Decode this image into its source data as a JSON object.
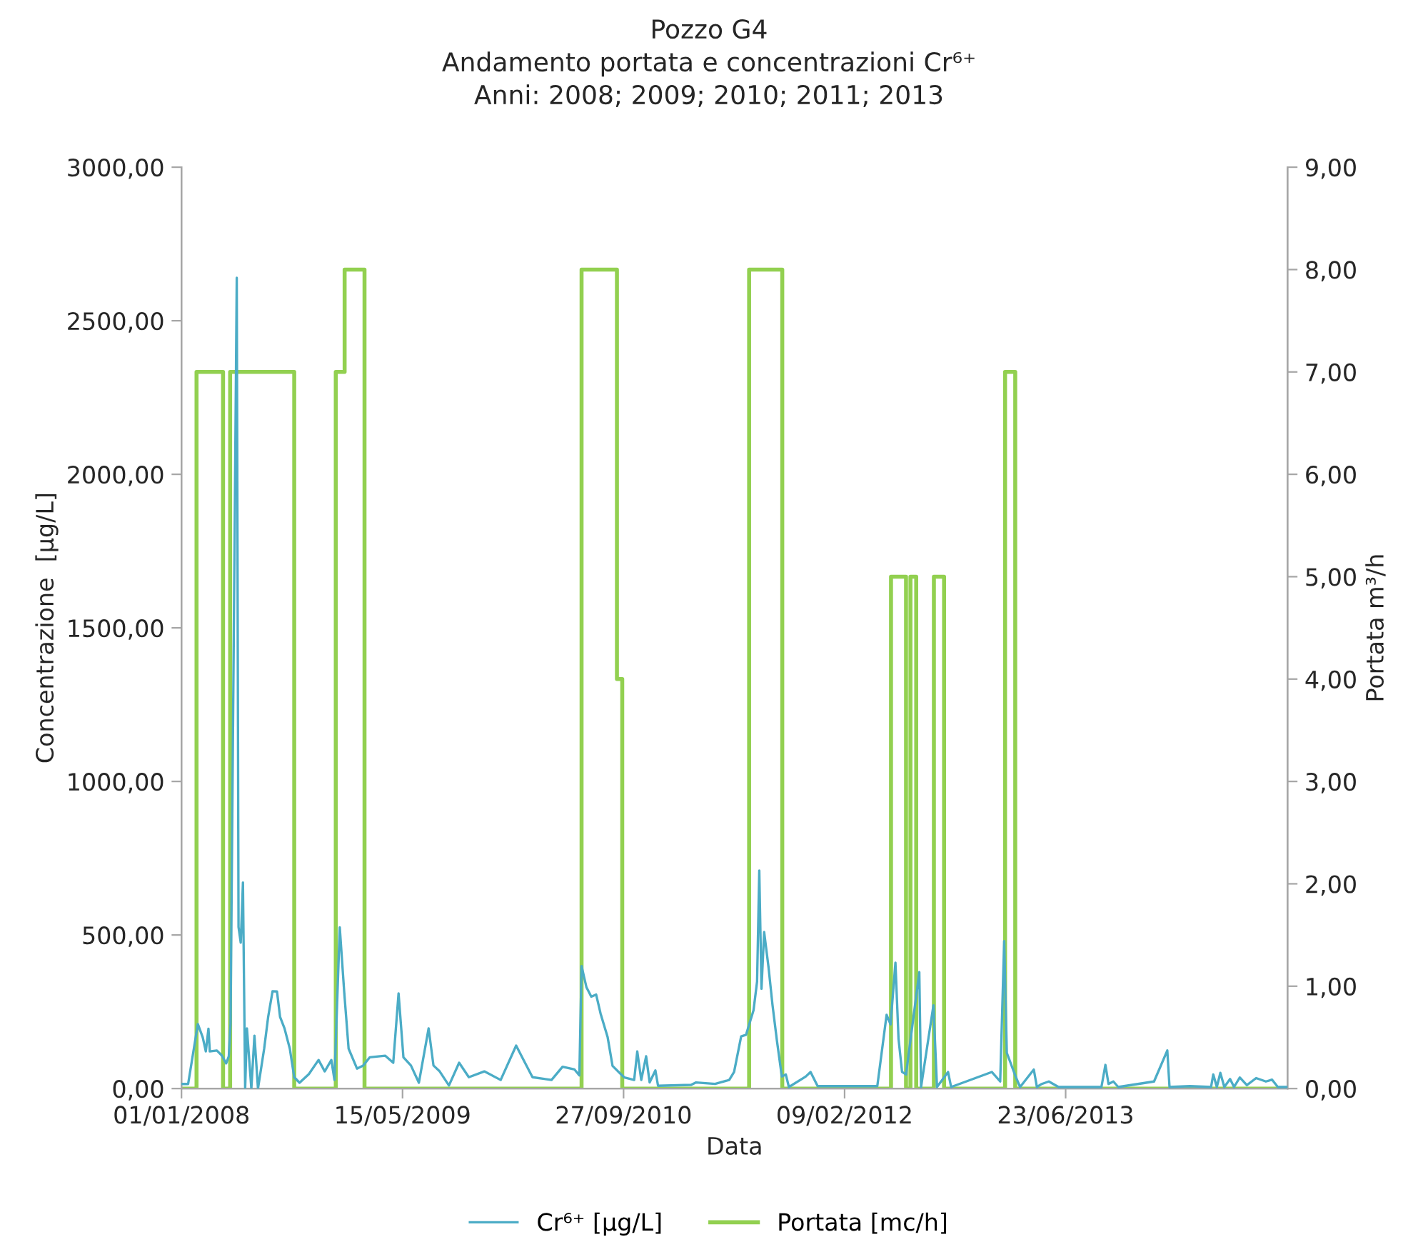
{
  "chart_data": {
    "type": "line",
    "title": "Pozzo G4",
    "subtitle": "Andamento portata e concentrazioni Cr⁶⁺\nAnni: 2008; 2009; 2010; 2011; 2013",
    "xlabel": "Data",
    "ylabel": "Concentrazione  [µg/L]",
    "y2label": "Portata m³/h",
    "xlim": [
      "2008-01-01",
      "2014-11-07"
    ],
    "xticks": [
      {
        "value": "2008-01-01",
        "label": "01/01/2008"
      },
      {
        "value": "2009-05-15",
        "label": "15/05/2009"
      },
      {
        "value": "2010-09-27",
        "label": "27/09/2010"
      },
      {
        "value": "2012-02-09",
        "label": "09/02/2012"
      },
      {
        "value": "2013-06-23",
        "label": "23/06/2013"
      }
    ],
    "ylim": [
      0,
      3000
    ],
    "yticks": [
      {
        "value": 0,
        "label": "0,00"
      },
      {
        "value": 500,
        "label": "500,00"
      },
      {
        "value": 1000,
        "label": "1000,00"
      },
      {
        "value": 1500,
        "label": "1500,00"
      },
      {
        "value": 2000,
        "label": "2000,00"
      },
      {
        "value": 2500,
        "label": "2500,00"
      },
      {
        "value": 3000,
        "label": "3000,00"
      }
    ],
    "y2lim": [
      0,
      9
    ],
    "y2ticks": [
      {
        "value": 0,
        "label": "0,00"
      },
      {
        "value": 1,
        "label": "1,00"
      },
      {
        "value": 2,
        "label": "2,00"
      },
      {
        "value": 3,
        "label": "3,00"
      },
      {
        "value": 4,
        "label": "4,00"
      },
      {
        "value": 5,
        "label": "5,00"
      },
      {
        "value": 6,
        "label": "6,00"
      },
      {
        "value": 7,
        "label": "7,00"
      },
      {
        "value": 8,
        "label": "8,00"
      },
      {
        "value": 9,
        "label": "9,00"
      }
    ],
    "grid": false,
    "legend": "bottom",
    "series": [
      {
        "name": "Cr⁶⁺ [µg/L]",
        "color": "#4bacc6",
        "x": [
          "2008-01-02",
          "2008-01-16",
          "2008-02-07",
          "2008-02-18",
          "2008-02-25",
          "2008-03-02",
          "2008-03-05",
          "2008-03-21",
          "2008-04-01",
          "2008-04-11",
          "2008-04-17",
          "2008-04-21",
          "2008-05-05",
          "2008-05-09",
          "2008-05-14",
          "2008-05-19",
          "2008-05-24",
          "2008-05-28",
          "2008-06-07",
          "2008-06-14",
          "2008-06-22",
          "2008-07-06",
          "2008-07-15",
          "2008-07-25",
          "2008-08-04",
          "2008-08-11",
          "2008-08-21",
          "2008-09-02",
          "2008-09-12",
          "2008-09-24",
          "2008-10-15",
          "2008-11-06",
          "2008-11-20",
          "2008-12-05",
          "2008-12-12",
          "2008-12-24",
          "2009-01-03",
          "2009-01-13",
          "2009-02-01",
          "2009-02-15",
          "2009-03-02",
          "2009-04-06",
          "2009-04-24",
          "2009-05-06",
          "2009-05-17",
          "2009-06-03",
          "2009-06-21",
          "2009-07-13",
          "2009-07-24",
          "2009-08-07",
          "2009-08-28",
          "2009-09-20",
          "2009-10-12",
          "2009-11-16",
          "2009-12-23",
          "2010-01-27",
          "2010-02-16",
          "2010-03-05",
          "2010-04-17",
          "2010-05-12",
          "2010-06-08",
          "2010-06-19",
          "2010-06-24",
          "2010-07-05",
          "2010-07-16",
          "2010-07-27",
          "2010-08-06",
          "2010-08-22",
          "2010-09-02",
          "2010-09-18",
          "2010-09-29",
          "2010-10-21",
          "2010-10-28",
          "2010-11-06",
          "2010-11-17",
          "2010-11-25",
          "2010-12-08",
          "2010-12-14",
          "2011-02-27",
          "2011-03-10",
          "2011-04-22",
          "2011-05-24",
          "2011-06-04",
          "2011-06-20",
          "2011-07-01",
          "2011-07-18",
          "2011-07-26",
          "2011-07-31",
          "2011-08-05",
          "2011-08-11",
          "2011-08-21",
          "2011-08-30",
          "2011-09-09",
          "2011-09-20",
          "2011-09-29",
          "2011-10-06",
          "2011-11-13",
          "2011-11-24",
          "2011-12-10",
          "2012-04-23",
          "2012-05-14",
          "2012-05-23",
          "2012-06-03",
          "2012-06-10",
          "2012-06-18",
          "2012-06-27",
          "2012-07-27",
          "2012-07-31",
          "2012-08-28",
          "2012-09-05",
          "2012-09-30",
          "2012-10-07",
          "2013-01-07",
          "2013-01-26",
          "2013-02-04",
          "2013-02-10",
          "2013-03-02",
          "2013-03-12",
          "2013-04-12",
          "2013-04-19",
          "2013-04-30",
          "2013-05-16",
          "2013-06-07",
          "2013-09-12",
          "2013-09-21",
          "2013-09-28",
          "2013-10-09",
          "2013-10-20",
          "2014-01-09",
          "2014-02-08",
          "2014-02-13",
          "2014-03-31",
          "2014-05-18",
          "2014-05-23",
          "2014-05-31",
          "2014-06-08",
          "2014-06-17",
          "2014-06-30",
          "2014-07-09",
          "2014-07-22",
          "2014-08-07",
          "2014-08-28",
          "2014-09-19",
          "2014-10-03",
          "2014-10-16",
          "2014-11-07"
        ],
        "values": [
          15,
          15,
          210,
          167,
          121,
          195,
          121,
          124,
          108,
          82,
          105,
          214,
          2640,
          526,
          475,
          671,
          0,
          196,
          0,
          172,
          0,
          130,
          233,
          317,
          316,
          233,
          196,
          130,
          37,
          19,
          47,
          93,
          56,
          93,
          28,
          525,
          316,
          130,
          65,
          75,
          102,
          107,
          84,
          310,
          102,
          75,
          19,
          196,
          75,
          56,
          10,
          84,
          37,
          56,
          28,
          140,
          84,
          37,
          28,
          71,
          62,
          43,
          399,
          330,
          299,
          306,
          244,
          167,
          74,
          51,
          36,
          28,
          121,
          28,
          105,
          20,
          59,
          9,
          12,
          20,
          15,
          28,
          54,
          170,
          175,
          255,
          348,
          710,
          325,
          510,
          394,
          271,
          155,
          39,
          46,
          5,
          39,
          54,
          8,
          8,
          240,
          209,
          410,
          162,
          54,
          46,
          379,
          5,
          271,
          5,
          54,
          5,
          54,
          23,
          480,
          116,
          39,
          5,
          62,
          5,
          15,
          23,
          5,
          5,
          77,
          15,
          23,
          5,
          23,
          124,
          5,
          8,
          5,
          46,
          5,
          51,
          5,
          31,
          5,
          36,
          11,
          34,
          23,
          29,
          5,
          5
        ]
      },
      {
        "name": "Portata [mc/h]",
        "color": "#92d050",
        "type": "step",
        "axis": "y2",
        "x": [
          "2008-01-01",
          "2008-02-04",
          "2008-04-04",
          "2008-04-20",
          "2008-09-12",
          "2008-12-15",
          "2009-01-04",
          "2009-02-18",
          "2010-06-24",
          "2010-09-12",
          "2010-09-24",
          "2011-07-08",
          "2011-09-21",
          "2012-05-24",
          "2012-06-27",
          "2012-07-07",
          "2012-07-20",
          "2012-08-29",
          "2012-09-21",
          "2013-02-06",
          "2013-03-01",
          "2014-11-07"
        ],
        "values": [
          0,
          7,
          0,
          7,
          0,
          7,
          8,
          0,
          8,
          4,
          0,
          8,
          0,
          5,
          0,
          5,
          0,
          5,
          0,
          7,
          0,
          0
        ]
      }
    ]
  }
}
